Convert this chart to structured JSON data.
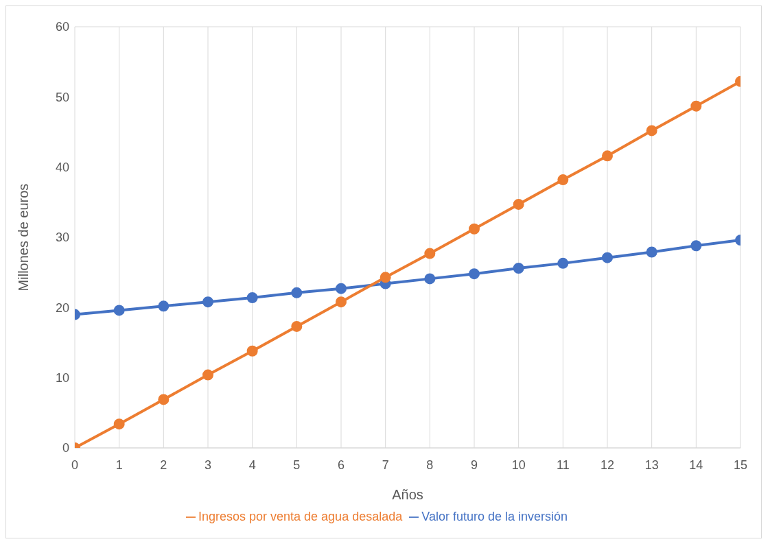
{
  "chart_data": {
    "type": "line",
    "xlabel": "Años",
    "ylabel": "Millones de euros",
    "x": [
      0,
      1,
      2,
      3,
      4,
      5,
      6,
      7,
      8,
      9,
      10,
      11,
      12,
      13,
      14,
      15
    ],
    "series": [
      {
        "name": "Valor futuro de la inversión",
        "color": "#4472c4",
        "values": [
          19.0,
          19.6,
          20.2,
          20.8,
          21.4,
          22.1,
          22.7,
          23.4,
          24.1,
          24.8,
          25.6,
          26.3,
          27.1,
          27.9,
          28.8,
          29.6
        ]
      },
      {
        "name": "Ingresos por venta de agua desalada",
        "color": "#ed7d31",
        "values": [
          0,
          3.4,
          6.9,
          10.4,
          13.8,
          17.3,
          20.8,
          24.3,
          27.7,
          31.2,
          34.7,
          38.2,
          41.6,
          45.2,
          48.7,
          52.2
        ]
      }
    ],
    "xlim": [
      0,
      15
    ],
    "xticks": [
      0,
      1,
      2,
      3,
      4,
      5,
      6,
      7,
      8,
      9,
      10,
      11,
      12,
      13,
      14,
      15
    ],
    "ylim": [
      0,
      60
    ],
    "yticks": [
      0,
      10,
      20,
      30,
      40,
      50,
      60
    ],
    "grid": true,
    "legend": "bottom",
    "marker": "circle",
    "line_style": "solid"
  }
}
